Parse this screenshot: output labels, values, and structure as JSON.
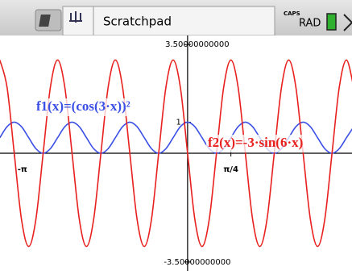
{
  "header": {
    "tab": "Scratchpad",
    "caps": "CAPS",
    "mode": "RAD"
  },
  "chart_data": {
    "type": "line",
    "x": [
      -3.403,
      -3.272,
      -3.142,
      -3.011,
      -2.88,
      -2.749,
      -2.618,
      -2.487,
      -2.356,
      -2.225,
      -2.094,
      -1.963,
      -1.833,
      -1.702,
      -1.571,
      -1.44,
      -1.309,
      -1.178,
      -1.047,
      -0.916,
      -0.785,
      -0.654,
      -0.524,
      -0.393,
      -0.262,
      -0.131,
      0,
      0.131,
      0.262,
      0.393,
      0.524,
      0.654,
      0.785,
      0.916,
      1.047,
      1.178,
      1.309,
      1.44,
      1.571,
      1.702,
      1.833,
      1.963,
      2.094,
      2.225,
      2.356,
      2.487,
      2.618,
      2.749,
      2.88,
      3.011
    ],
    "series": [
      {
        "name": "f1(x)=(cos(3·x))²",
        "color": "#3a4fe6",
        "values": [
          0.5,
          0.854,
          1,
          0.854,
          0.5,
          0.146,
          0,
          0.146,
          0.5,
          0.854,
          1,
          0.854,
          0.5,
          0.146,
          0,
          0.146,
          0.5,
          0.854,
          1,
          0.854,
          0.5,
          0.146,
          0,
          0.146,
          0.5,
          0.854,
          1,
          0.854,
          0.5,
          0.146,
          0,
          0.146,
          0.5,
          0.854,
          1,
          0.854,
          0.5,
          0.146,
          0,
          0.146,
          0.5,
          0.854,
          1,
          0.854,
          0.5,
          0.146,
          0,
          0.146,
          0.5,
          0.854
        ]
      },
      {
        "name": "f2(x)=-3·sin(6·x)",
        "color": "#e8201e",
        "values": [
          3,
          2.121,
          0,
          -2.121,
          -3,
          -2.121,
          0,
          2.121,
          3,
          2.121,
          0,
          -2.121,
          -3,
          -2.121,
          0,
          2.121,
          3,
          2.121,
          0,
          -2.121,
          -3,
          -2.121,
          0,
          2.121,
          3,
          2.121,
          0,
          -2.121,
          -3,
          -2.121,
          0,
          2.121,
          3,
          2.121,
          0,
          -2.121,
          -3,
          -2.121,
          0,
          2.121,
          3,
          2.121,
          0,
          -2.121,
          -3,
          -2.121,
          0,
          2.121,
          3,
          2.121
        ]
      }
    ],
    "xlim": [
      -3.4,
      2.98
    ],
    "ylim": [
      -3.79,
      3.79
    ],
    "xticks": [
      {
        "value": -3.14159,
        "label": "-π"
      },
      {
        "value": 0.785,
        "label": "π/4"
      }
    ],
    "yticks": [
      {
        "value": 3.5,
        "label": "3.50000000000"
      },
      {
        "value": 1,
        "label": "1"
      },
      {
        "value": -3.5,
        "label": "-3.50000000000"
      }
    ]
  }
}
